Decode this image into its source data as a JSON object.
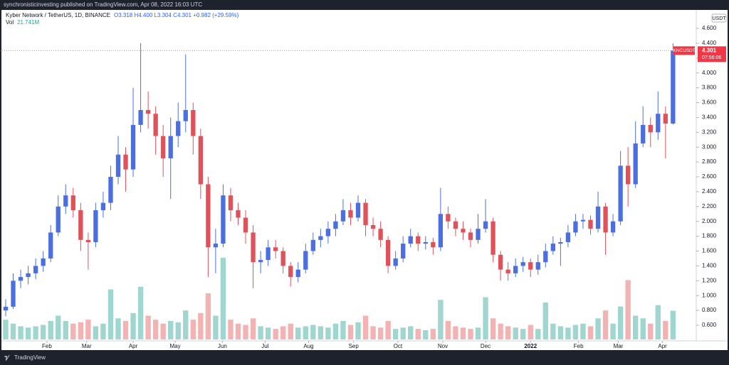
{
  "header": {
    "publisher": "synchronisticinvesting published on TradingView.com, Apr 08, 2022 16:03 UTC"
  },
  "footer": {
    "brand": "TradingView"
  },
  "chart_data": {
    "type": "candlestick",
    "title": "Kyber Network / TetherUS, 1D, BINANCE",
    "ohlc_label": "O3.318 H4.400 L3.304 C4.301 +0.982 (+29.59%)",
    "volume_name": "Vol",
    "volume_value_label": "21.741M",
    "currency": "USDT",
    "last_price": {
      "symbol": "KNCUSDT",
      "value": 4.301,
      "label": "4.301",
      "countdown": "07:56:06"
    },
    "up_color": "#4b6fe0",
    "down_color": "#e0525a",
    "volume_up_color": "#9fd6cf",
    "volume_down_color": "#f3b3b2",
    "grid": false,
    "xlim": [
      -0.76,
      92.1
    ],
    "ylim": [
      0.409,
      4.849
    ],
    "volume_ylim": [
      0,
      250
    ],
    "xticks": [
      {
        "value": 5.5,
        "label": "Feb"
      },
      {
        "value": 10.8,
        "label": "Mar"
      },
      {
        "value": 17.0,
        "label": "Apr"
      },
      {
        "value": 22.6,
        "label": "May"
      },
      {
        "value": 28.9,
        "label": "Jun"
      },
      {
        "value": 34.6,
        "label": "Jul"
      },
      {
        "value": 40.4,
        "label": "Aug"
      },
      {
        "value": 46.4,
        "label": "Sep"
      },
      {
        "value": 52.3,
        "label": "Oct"
      },
      {
        "value": 58.3,
        "label": "Nov"
      },
      {
        "value": 64.0,
        "label": "Dec"
      },
      {
        "value": 70.0,
        "label": "2022"
      },
      {
        "value": 76.4,
        "label": "Feb"
      },
      {
        "value": 81.7,
        "label": "Mar"
      },
      {
        "value": 87.6,
        "label": "Apr"
      }
    ],
    "yticks": [
      {
        "value": 0.6,
        "label": "0.600"
      },
      {
        "value": 0.8,
        "label": "0.800"
      },
      {
        "value": 1.0,
        "label": "1.000"
      },
      {
        "value": 1.2,
        "label": "1.200"
      },
      {
        "value": 1.4,
        "label": "1.400"
      },
      {
        "value": 1.6,
        "label": "1.600"
      },
      {
        "value": 1.8,
        "label": "1.800"
      },
      {
        "value": 2.0,
        "label": "2.000"
      },
      {
        "value": 2.2,
        "label": "2.200"
      },
      {
        "value": 2.4,
        "label": "2.400"
      },
      {
        "value": 2.6,
        "label": "2.600"
      },
      {
        "value": 2.8,
        "label": "2.800"
      },
      {
        "value": 3.0,
        "label": "3.000"
      },
      {
        "value": 3.2,
        "label": "3.200"
      },
      {
        "value": 3.4,
        "label": "3.400"
      },
      {
        "value": 3.6,
        "label": "3.600"
      },
      {
        "value": 3.8,
        "label": "3.800"
      },
      {
        "value": 4.0,
        "label": "4.000"
      },
      {
        "value": 4.2,
        "label": "4.200"
      },
      {
        "value": 4.4,
        "label": "4.400"
      },
      {
        "value": 4.6,
        "label": "4.600"
      }
    ],
    "candles": [
      [
        0.8,
        0.95,
        0.72,
        0.85
      ],
      [
        0.85,
        1.3,
        0.82,
        1.2
      ],
      [
        1.2,
        1.35,
        1.1,
        1.25
      ],
      [
        1.25,
        1.4,
        1.15,
        1.3
      ],
      [
        1.3,
        1.5,
        1.22,
        1.4
      ],
      [
        1.4,
        1.6,
        1.32,
        1.5
      ],
      [
        1.5,
        1.95,
        1.45,
        1.85
      ],
      [
        1.85,
        2.35,
        1.8,
        2.2
      ],
      [
        2.2,
        2.5,
        2.1,
        2.35
      ],
      [
        2.35,
        2.45,
        2.05,
        2.15
      ],
      [
        2.15,
        2.25,
        1.6,
        1.75
      ],
      [
        1.75,
        1.85,
        1.35,
        1.72
      ],
      [
        1.72,
        2.25,
        1.65,
        2.15
      ],
      [
        2.15,
        2.4,
        2.05,
        2.25
      ],
      [
        2.25,
        2.75,
        2.15,
        2.6
      ],
      [
        2.6,
        3.15,
        2.5,
        2.9
      ],
      [
        2.9,
        3.0,
        2.4,
        2.7
      ],
      [
        2.7,
        3.8,
        2.6,
        3.3
      ],
      [
        3.3,
        4.4,
        3.2,
        3.5
      ],
      [
        3.5,
        3.75,
        3.25,
        3.45
      ],
      [
        3.45,
        3.55,
        2.9,
        3.15
      ],
      [
        3.15,
        3.3,
        2.6,
        2.85
      ],
      [
        2.85,
        3.4,
        2.3,
        3.15
      ],
      [
        3.15,
        3.6,
        3.0,
        3.35
      ],
      [
        3.35,
        4.25,
        3.2,
        3.5
      ],
      [
        3.5,
        3.6,
        2.9,
        3.15
      ],
      [
        3.15,
        3.25,
        2.3,
        2.5
      ],
      [
        2.5,
        2.6,
        1.25,
        1.65
      ],
      [
        1.65,
        1.9,
        1.3,
        1.7
      ],
      [
        1.7,
        2.5,
        1.65,
        2.35
      ],
      [
        2.35,
        2.45,
        2.0,
        2.15
      ],
      [
        2.15,
        2.25,
        1.95,
        2.05
      ],
      [
        2.05,
        2.15,
        1.7,
        1.85
      ],
      [
        1.85,
        1.95,
        1.1,
        1.45
      ],
      [
        1.45,
        1.6,
        1.3,
        1.48
      ],
      [
        1.48,
        1.75,
        1.4,
        1.65
      ],
      [
        1.65,
        1.75,
        1.5,
        1.6
      ],
      [
        1.6,
        1.65,
        1.3,
        1.4
      ],
      [
        1.4,
        1.45,
        1.12,
        1.25
      ],
      [
        1.25,
        1.45,
        1.18,
        1.35
      ],
      [
        1.35,
        1.7,
        1.3,
        1.6
      ],
      [
        1.6,
        1.85,
        1.55,
        1.75
      ],
      [
        1.75,
        1.9,
        1.65,
        1.8
      ],
      [
        1.8,
        2.0,
        1.7,
        1.9
      ],
      [
        1.9,
        2.1,
        1.8,
        2.0
      ],
      [
        2.0,
        2.3,
        1.95,
        2.15
      ],
      [
        2.15,
        2.25,
        1.95,
        2.05
      ],
      [
        2.05,
        2.35,
        2.0,
        2.25
      ],
      [
        2.25,
        2.3,
        1.8,
        1.95
      ],
      [
        1.95,
        2.05,
        1.8,
        1.9
      ],
      [
        1.9,
        2.0,
        1.65,
        1.75
      ],
      [
        1.75,
        1.8,
        1.3,
        1.4
      ],
      [
        1.4,
        1.6,
        1.35,
        1.5
      ],
      [
        1.5,
        1.8,
        1.45,
        1.7
      ],
      [
        1.7,
        1.9,
        1.65,
        1.8
      ],
      [
        1.8,
        1.85,
        1.6,
        1.7
      ],
      [
        1.7,
        1.8,
        1.62,
        1.72
      ],
      [
        1.72,
        1.78,
        1.55,
        1.65
      ],
      [
        1.65,
        2.45,
        1.6,
        2.1
      ],
      [
        2.1,
        2.2,
        1.9,
        2.0
      ],
      [
        2.0,
        2.05,
        1.8,
        1.9
      ],
      [
        1.9,
        2.0,
        1.75,
        1.85
      ],
      [
        1.85,
        1.9,
        1.65,
        1.75
      ],
      [
        1.75,
        2.1,
        1.7,
        1.9
      ],
      [
        1.9,
        2.3,
        1.85,
        2.0
      ],
      [
        2.0,
        2.05,
        1.45,
        1.55
      ],
      [
        1.55,
        1.6,
        1.2,
        1.35
      ],
      [
        1.35,
        1.45,
        1.2,
        1.3
      ],
      [
        1.3,
        1.5,
        1.25,
        1.4
      ],
      [
        1.4,
        1.52,
        1.32,
        1.45
      ],
      [
        1.45,
        1.5,
        1.25,
        1.35
      ],
      [
        1.35,
        1.55,
        1.28,
        1.45
      ],
      [
        1.45,
        1.7,
        1.38,
        1.6
      ],
      [
        1.6,
        1.8,
        1.55,
        1.7
      ],
      [
        1.7,
        1.78,
        1.4,
        1.72
      ],
      [
        1.72,
        1.95,
        1.65,
        1.85
      ],
      [
        1.85,
        2.1,
        1.8,
        2.0
      ],
      [
        2.0,
        2.1,
        1.9,
        2.02
      ],
      [
        2.02,
        2.08,
        1.82,
        1.9
      ],
      [
        1.9,
        2.4,
        1.85,
        2.2
      ],
      [
        2.2,
        2.25,
        1.55,
        1.85
      ],
      [
        1.85,
        2.1,
        1.8,
        2.0
      ],
      [
        2.0,
        2.95,
        1.95,
        2.75
      ],
      [
        2.75,
        3.0,
        2.2,
        2.5
      ],
      [
        2.5,
        3.35,
        2.45,
        3.05
      ],
      [
        3.05,
        3.55,
        3.0,
        3.3
      ],
      [
        3.3,
        3.4,
        3.0,
        3.2
      ],
      [
        3.2,
        3.75,
        3.1,
        3.45
      ],
      [
        3.45,
        3.55,
        2.85,
        3.318
      ],
      [
        3.318,
        4.4,
        3.304,
        4.301
      ]
    ],
    "volume": [
      15,
      12,
      10,
      9,
      10,
      11,
      14,
      18,
      14,
      12,
      13,
      15,
      10,
      12,
      38,
      16,
      14,
      20,
      40,
      18,
      15,
      12,
      14,
      13,
      22,
      15,
      20,
      35,
      18,
      62,
      15,
      12,
      11,
      16,
      10,
      9,
      8,
      10,
      12,
      9,
      10,
      11,
      10,
      9,
      12,
      14,
      11,
      13,
      18,
      10,
      9,
      14,
      8,
      9,
      10,
      8,
      7,
      8,
      30,
      14,
      10,
      9,
      8,
      9,
      32,
      16,
      12,
      10,
      9,
      8,
      11,
      8,
      28,
      12,
      10,
      9,
      11,
      12,
      10,
      16,
      22,
      12,
      25,
      45,
      18,
      16,
      12,
      26,
      14,
      21.741
    ]
  }
}
